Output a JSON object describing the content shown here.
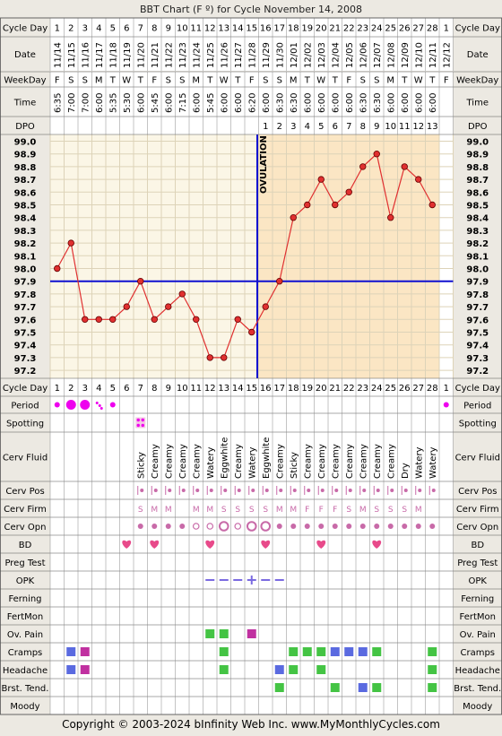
{
  "title": "BBT Chart (F º) for Cycle November 14, 2008",
  "footer": "Copyright © 2003-2024 bInfinity Web Inc.     www.MyMonthlyCycles.com",
  "colors": {
    "bg": "#ece9e2",
    "pre": "#fbf6e6",
    "post": "#fbe6c4",
    "grid": "#ddd3b8",
    "line": "#e03030",
    "cover": "#1010d0",
    "red": "#d21515",
    "period": "#ee00ee",
    "cf": "#c86aa8",
    "green": "#44c444",
    "purple": "#c030a0",
    "blue": "#5a6ae0"
  },
  "labels": {
    "cycle_day": "Cycle Day",
    "date": "Date",
    "weekday": "WeekDay",
    "time": "Time",
    "dpo": "DPO",
    "period": "Period",
    "spotting": "Spotting",
    "cerv_fluid": "Cerv Fluid",
    "cerv_pos": "Cerv Pos",
    "cerv_firm": "Cerv Firm",
    "cerv_opn": "Cerv Opn",
    "bd": "BD",
    "preg_test": "Preg Test",
    "opk": "OPK",
    "ferning": "Ferning",
    "fertmon": "FertMon",
    "ov_pain": "Ov. Pain",
    "cramps": "Cramps",
    "headache": "Headache",
    "brst_tend": "Brst. Tend.",
    "moody": "Moody"
  },
  "ovulation_label": "OVULATION",
  "cycle_days": [
    "1",
    "2",
    "3",
    "4",
    "5",
    "6",
    "7",
    "8",
    "9",
    "10",
    "11",
    "12",
    "13",
    "14",
    "15",
    "16",
    "17",
    "18",
    "19",
    "20",
    "21",
    "22",
    "23",
    "24",
    "25",
    "26",
    "27",
    "28",
    "1"
  ],
  "dates": [
    "11/14",
    "11/15",
    "11/16",
    "11/17",
    "11/18",
    "11/19",
    "11/20",
    "11/21",
    "11/22",
    "11/23",
    "11/24",
    "11/25",
    "11/26",
    "11/27",
    "11/28",
    "11/29",
    "11/30",
    "12/01",
    "12/02",
    "12/03",
    "12/04",
    "12/05",
    "12/06",
    "12/07",
    "12/08",
    "12/09",
    "12/10",
    "12/11",
    "12/12"
  ],
  "weekdays": [
    "F",
    "S",
    "S",
    "M",
    "T",
    "W",
    "T",
    "F",
    "S",
    "S",
    "M",
    "T",
    "W",
    "T",
    "F",
    "S",
    "S",
    "M",
    "T",
    "W",
    "T",
    "F",
    "S",
    "S",
    "M",
    "T",
    "W",
    "T",
    "F"
  ],
  "times": [
    "6:35",
    "7:00",
    "7:00",
    "6:00",
    "5:35",
    "5:30",
    "6:00",
    "5:45",
    "6:00",
    "7:15",
    "6:00",
    "5:45",
    "6:00",
    "6:00",
    "6:20",
    "6:00",
    "6:30",
    "6:30",
    "6:00",
    "6:00",
    "6:00",
    "6:00",
    "6:30",
    "6:30",
    "6:00",
    "6:00",
    "6:00",
    "6:00",
    ""
  ],
  "dpo": [
    "",
    "",
    "",
    "",
    "",
    "",
    "",
    "",
    "",
    "",
    "",
    "",
    "",
    "",
    "",
    "1",
    "2",
    "3",
    "4",
    "5",
    "6",
    "7",
    "8",
    "9",
    "10",
    "11",
    "12",
    "13",
    ""
  ],
  "temp_ticks": [
    "99.0",
    "98.9",
    "98.8",
    "98.7",
    "98.6",
    "98.5",
    "98.4",
    "98.3",
    "98.2",
    "98.1",
    "98.0",
    "97.9",
    "97.8",
    "97.7",
    "97.6",
    "97.5",
    "97.4",
    "97.3",
    "97.2"
  ],
  "chart_data": {
    "type": "line",
    "title": "BBT Chart (F º) for Cycle November 14, 2008",
    "ylim": [
      97.2,
      99.0
    ],
    "x": [
      1,
      2,
      3,
      4,
      5,
      6,
      7,
      8,
      9,
      10,
      11,
      12,
      13,
      14,
      15,
      16,
      17,
      18,
      19,
      20,
      21,
      22,
      23,
      24,
      25,
      26,
      27,
      28
    ],
    "temps": [
      98.0,
      98.2,
      97.6,
      97.6,
      97.6,
      97.7,
      97.9,
      97.6,
      97.7,
      97.8,
      97.6,
      97.3,
      97.3,
      97.6,
      97.5,
      97.7,
      97.9,
      98.4,
      98.5,
      98.7,
      98.5,
      98.6,
      98.8,
      98.9,
      98.4,
      98.8,
      98.7,
      98.5
    ],
    "coverline": 97.9,
    "ovulation_after_day": 15
  },
  "cerv_fluid": [
    "",
    "",
    "",
    "",
    "",
    "",
    "Sticky",
    "Creamy",
    "Creamy",
    "Creamy",
    "Creamy",
    "Watery",
    "Eggwhite",
    "Creamy",
    "Watery",
    "Eggwhite",
    "Creamy",
    "Sticky",
    "Creamy",
    "Creamy",
    "Creamy",
    "Creamy",
    "Creamy",
    "Creamy",
    "Creamy",
    "Dry",
    "Watery",
    "Watery",
    ""
  ],
  "cerv_firm": [
    "",
    "",
    "",
    "",
    "",
    "",
    "S",
    "M",
    "M",
    "",
    "M",
    "M",
    "S",
    "S",
    "S",
    "S",
    "M",
    "M",
    "F",
    "F",
    "F",
    "S",
    "M",
    "S",
    "S",
    "S",
    "M",
    "",
    ""
  ],
  "period": [
    1,
    3,
    3,
    2,
    1,
    0,
    0,
    0,
    0,
    0,
    0,
    0,
    0,
    0,
    0,
    0,
    0,
    0,
    0,
    0,
    0,
    0,
    0,
    0,
    0,
    0,
    0,
    0,
    1
  ],
  "spotting_days": [
    7
  ],
  "cerv_pos": [
    0,
    0,
    0,
    0,
    0,
    0,
    1,
    1,
    1,
    1,
    1,
    1,
    1,
    1,
    1,
    1,
    1,
    1,
    1,
    1,
    1,
    1,
    1,
    1,
    1,
    1,
    1,
    1,
    0
  ],
  "cerv_opn": [
    0,
    0,
    0,
    0,
    0,
    0,
    1,
    1,
    1,
    1,
    2,
    2,
    3,
    2,
    3,
    3,
    1,
    1,
    1,
    1,
    1,
    1,
    1,
    1,
    1,
    1,
    1,
    1,
    0
  ],
  "bd_days": [
    6,
    8,
    12,
    16,
    20,
    24
  ],
  "opk_days": [
    12,
    13,
    14,
    15,
    16,
    17
  ],
  "opk_positive_day": 15,
  "ov_pain": {
    "green": [
      12,
      13
    ],
    "purple": [
      15
    ]
  },
  "cramps": {
    "blue": [
      2,
      21,
      22,
      23
    ],
    "purple": [
      3
    ],
    "green": [
      13,
      18,
      19,
      20,
      24,
      28
    ]
  },
  "headache": {
    "blue": [
      2,
      17
    ],
    "purple": [
      3
    ],
    "green": [
      13,
      18,
      20,
      28
    ]
  },
  "brst_tend": {
    "blue": [
      23
    ],
    "green": [
      17,
      21,
      24,
      28
    ]
  }
}
